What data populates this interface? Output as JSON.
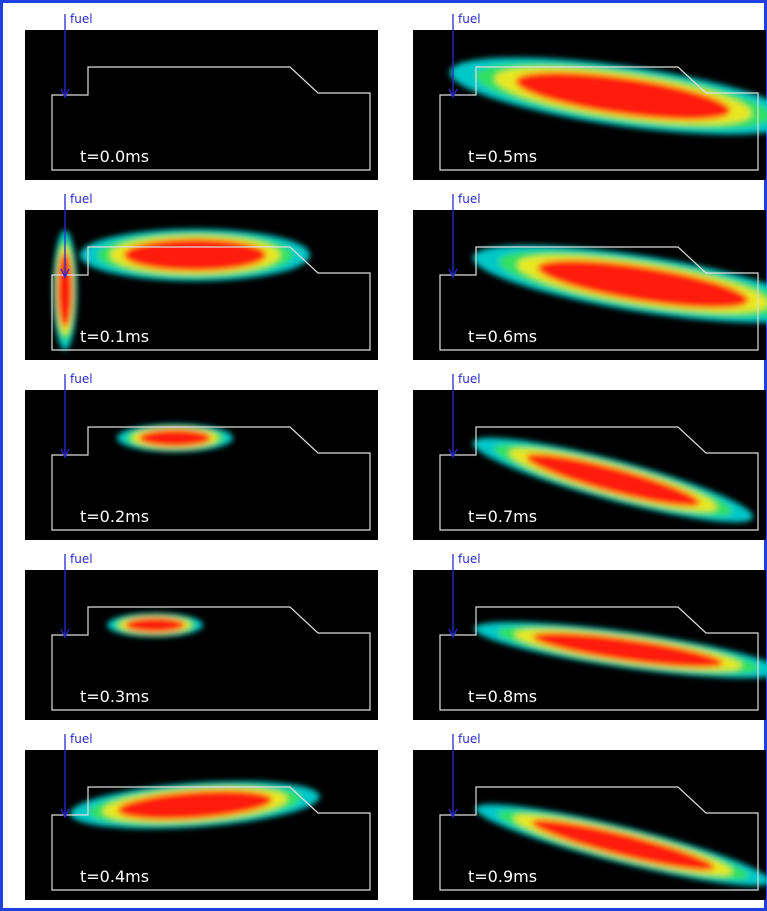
{
  "panels": [
    {
      "fuel_label": "fuel",
      "time": "t=0.0ms"
    },
    {
      "fuel_label": "fuel",
      "time": "t=0.1ms"
    },
    {
      "fuel_label": "fuel",
      "time": "t=0.2ms"
    },
    {
      "fuel_label": "fuel",
      "time": "t=0.3ms"
    },
    {
      "fuel_label": "fuel",
      "time": "t=0.4ms"
    },
    {
      "fuel_label": "fuel",
      "time": "t=0.5ms"
    },
    {
      "fuel_label": "fuel",
      "time": "t=0.6ms"
    },
    {
      "fuel_label": "fuel",
      "time": "t=0.7ms"
    },
    {
      "fuel_label": "fuel",
      "time": "t=0.8ms"
    },
    {
      "fuel_label": "fuel",
      "time": "t=0.9ms"
    }
  ]
}
